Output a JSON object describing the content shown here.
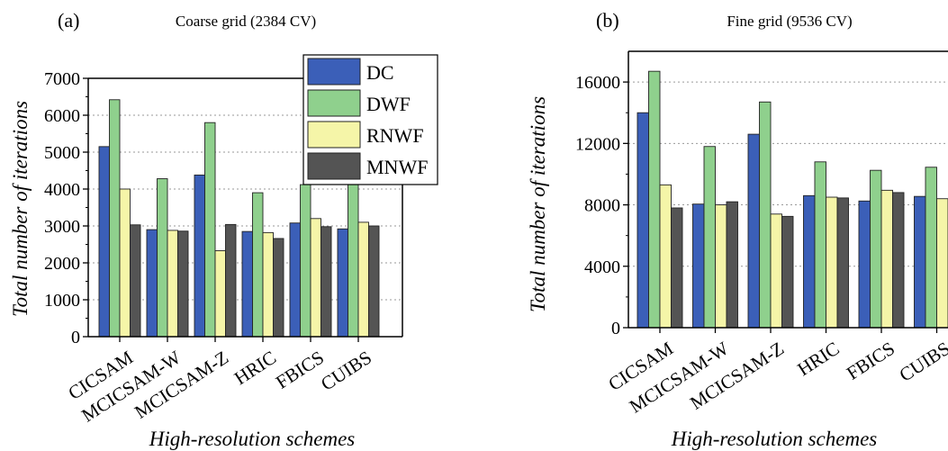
{
  "chart_data": [
    {
      "type": "bar",
      "panel_label": "(a)",
      "title": "Coarse grid (2384 CV)",
      "xlabel": "High-resolution schemes",
      "ylabel": "Total number of iterations",
      "ylim": [
        0,
        7000
      ],
      "yticks": [
        0,
        1000,
        2000,
        3000,
        4000,
        5000,
        6000,
        7000
      ],
      "ytick_labels": [
        "0",
        "1000",
        "2000",
        "3000",
        "4000",
        "5000",
        "6000",
        "7000"
      ],
      "grid": "horizontal-dotted",
      "legend_placement": "top-right",
      "categories": [
        "CICSAM",
        "MCICSAM-W",
        "MCICSAM-Z",
        "HRIC",
        "FBICS",
        "CUIBS"
      ],
      "series": [
        {
          "name": "DC",
          "color": "#3B5FB8",
          "values": [
            5150,
            2900,
            4380,
            2850,
            3080,
            2920
          ]
        },
        {
          "name": "DWF",
          "color": "#8FD08D",
          "values": [
            6420,
            4280,
            5800,
            3900,
            4120,
            4120
          ]
        },
        {
          "name": "RNWF",
          "color": "#F5F5A8",
          "values": [
            4000,
            2880,
            2330,
            2820,
            3200,
            3100
          ]
        },
        {
          "name": "MNWF",
          "color": "#545454",
          "values": [
            3030,
            2860,
            3040,
            2660,
            2980,
            3000
          ]
        }
      ]
    },
    {
      "type": "bar",
      "panel_label": "(b)",
      "title": "Fine grid (9536 CV)",
      "xlabel": "High-resolution schemes",
      "ylabel": "Total number of iterations",
      "ylim": [
        0,
        18000
      ],
      "yticks": [
        0,
        4000,
        8000,
        12000,
        16000
      ],
      "ytick_labels": [
        "0",
        "4000",
        "8000",
        "12000",
        "16000"
      ],
      "grid": "horizontal-dotted",
      "categories": [
        "CICSAM",
        "MCICSAM-W",
        "MCICSAM-Z",
        "HRIC",
        "FBICS",
        "CUIBS"
      ],
      "series": [
        {
          "name": "DC",
          "color": "#3B5FB8",
          "values": [
            14000,
            8050,
            12600,
            8600,
            8250,
            8550
          ]
        },
        {
          "name": "DWF",
          "color": "#8FD08D",
          "values": [
            16700,
            11800,
            14700,
            10800,
            10250,
            10450
          ]
        },
        {
          "name": "RNWF",
          "color": "#F5F5A8",
          "values": [
            9300,
            8000,
            7400,
            8500,
            8950,
            8400
          ]
        },
        {
          "name": "MNWF",
          "color": "#545454",
          "values": [
            7800,
            8200,
            7250,
            8450,
            8800,
            8150
          ]
        }
      ]
    }
  ]
}
